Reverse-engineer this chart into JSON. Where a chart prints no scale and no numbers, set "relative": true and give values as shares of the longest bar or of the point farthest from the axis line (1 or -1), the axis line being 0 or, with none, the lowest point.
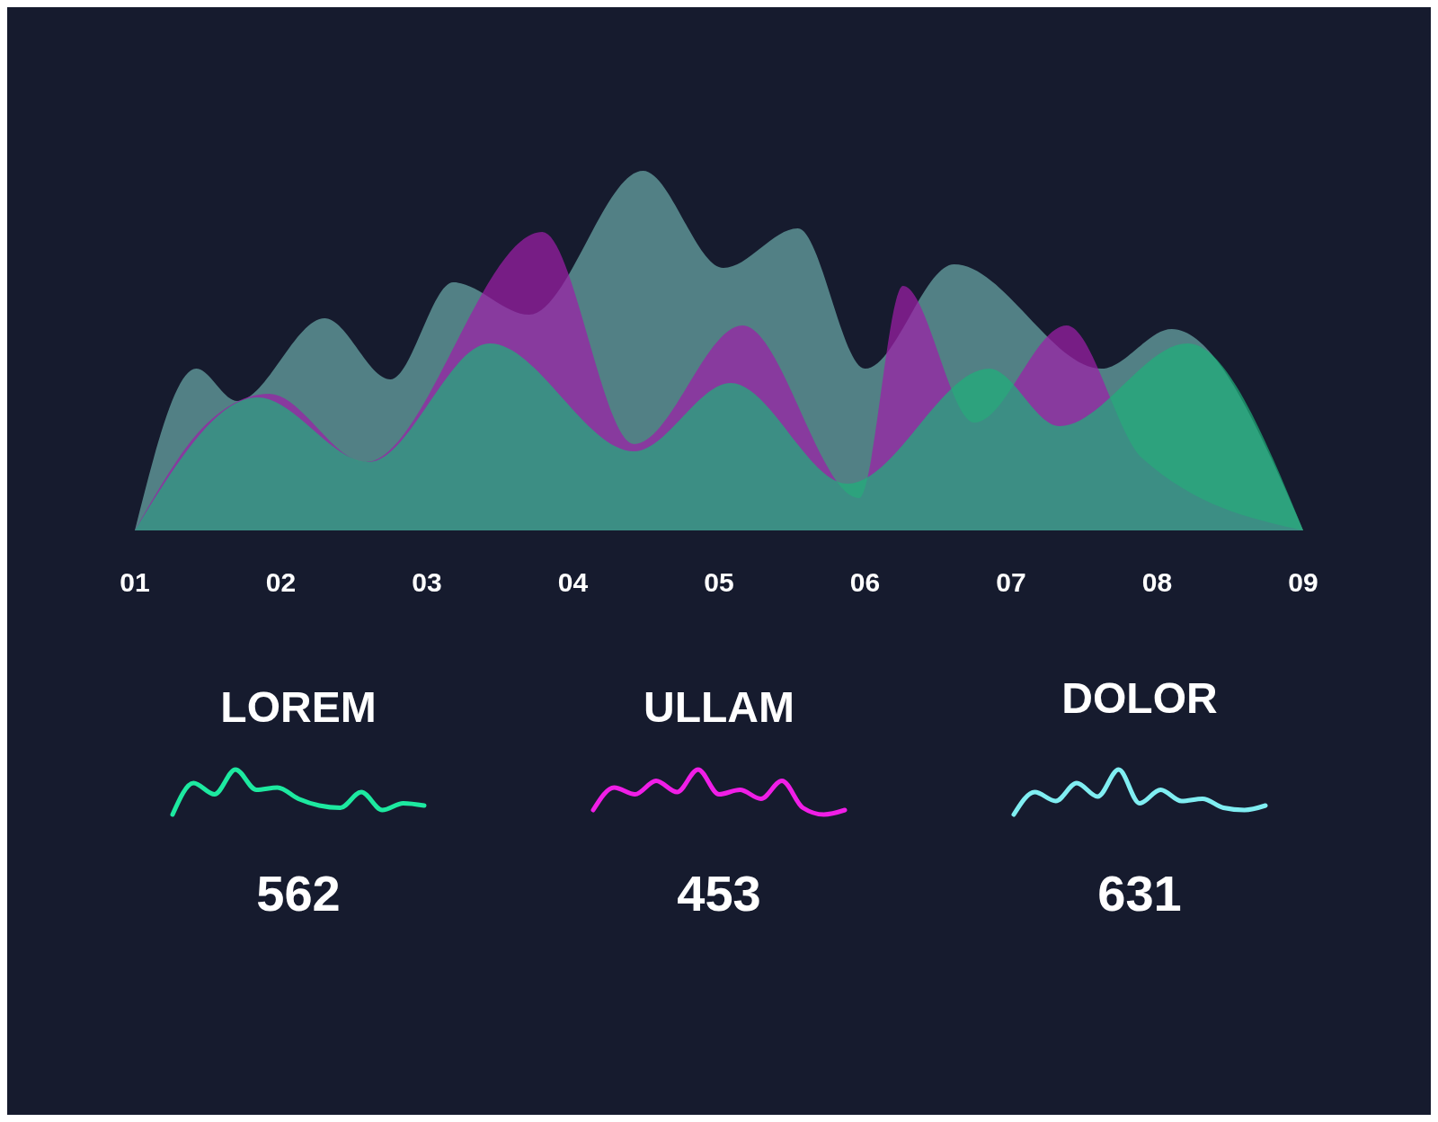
{
  "chart_data": [
    {
      "type": "area",
      "relative": true,
      "xlim": [
        1,
        9
      ],
      "xticks": [
        {
          "value": 1,
          "label": "01"
        },
        {
          "value": 2,
          "label": "02"
        },
        {
          "value": 3,
          "label": "03"
        },
        {
          "value": 4,
          "label": "04"
        },
        {
          "value": 5,
          "label": "05"
        },
        {
          "value": 6,
          "label": "06"
        },
        {
          "value": 7,
          "label": "07"
        },
        {
          "value": 8,
          "label": "08"
        },
        {
          "value": 9,
          "label": "09"
        }
      ],
      "series": [
        {
          "color": "#6aa8a8",
          "x": [
            1,
            1.42,
            1.7,
            2.3,
            2.75,
            3.18,
            3.7,
            4.48,
            5.03,
            5.54,
            6.0,
            6.61,
            7.62,
            8.1,
            9
          ],
          "values": [
            0,
            0.45,
            0.36,
            0.59,
            0.42,
            0.69,
            0.6,
            1,
            0.73,
            0.84,
            0.45,
            0.74,
            0.45,
            0.56,
            0
          ]
        },
        {
          "color": "#9c1fa8",
          "x": [
            1,
            1.5,
            1.92,
            2.58,
            3.79,
            4.42,
            5.16,
            5.96,
            6.26,
            6.75,
            7.38,
            7.9,
            9
          ],
          "values": [
            0,
            0.3,
            0.38,
            0.19,
            0.83,
            0.24,
            0.57,
            0.09,
            0.68,
            0.3,
            0.57,
            0.2,
            0
          ]
        },
        {
          "color": "#1fae7a",
          "x": [
            1,
            1.84,
            2.6,
            3.43,
            4.42,
            5.08,
            5.88,
            6.85,
            7.33,
            8.21,
            9
          ],
          "values": [
            0,
            0.37,
            0.19,
            0.52,
            0.22,
            0.41,
            0.13,
            0.45,
            0.29,
            0.52,
            0
          ]
        }
      ]
    },
    {
      "type": "line",
      "relative": true,
      "title": "LOREM",
      "annotations": [
        "562"
      ],
      "categories": [
        null,
        null,
        null,
        null,
        null,
        null,
        null,
        null,
        null,
        null,
        null,
        null,
        null
      ],
      "series": [
        {
          "color": "#1de9a0",
          "values": [
            0,
            0.7,
            0.45,
            1,
            0.55,
            0.6,
            0.35,
            0.2,
            0.15,
            0.5,
            0.1,
            0.25,
            0.2
          ]
        }
      ]
    },
    {
      "type": "line",
      "relative": true,
      "title": "ULLAM",
      "annotations": [
        "453"
      ],
      "categories": [
        null,
        null,
        null,
        null,
        null,
        null,
        null,
        null,
        null,
        null,
        null,
        null,
        null
      ],
      "series": [
        {
          "color": "#f01ee6",
          "values": [
            0.1,
            0.6,
            0.45,
            0.75,
            0.5,
            1,
            0.45,
            0.55,
            0.35,
            0.75,
            0.15,
            0,
            0.1
          ]
        }
      ]
    },
    {
      "type": "line",
      "relative": true,
      "title": "DOLOR",
      "annotations": [
        "631"
      ],
      "categories": [
        null,
        null,
        null,
        null,
        null,
        null,
        null,
        null,
        null,
        null,
        null,
        null,
        null
      ],
      "series": [
        {
          "color": "#80eef2",
          "values": [
            0,
            0.5,
            0.3,
            0.7,
            0.4,
            1,
            0.25,
            0.55,
            0.3,
            0.35,
            0.15,
            0.1,
            0.2
          ]
        }
      ]
    }
  ]
}
